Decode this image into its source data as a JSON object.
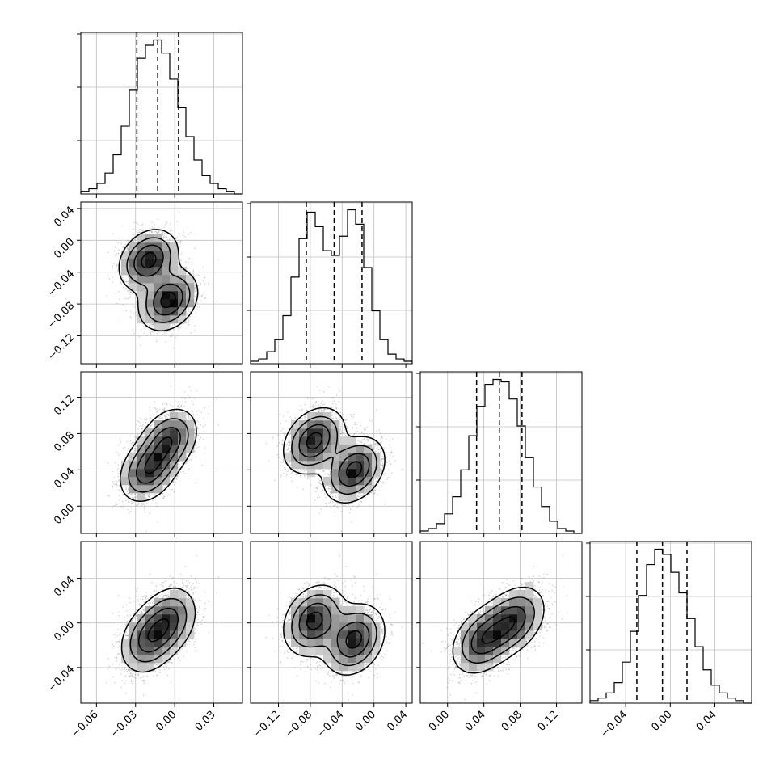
{
  "chart_data": {
    "type": "corner",
    "dimension": 4,
    "grid": true,
    "colors": {
      "axes": "#000000",
      "grid": "#bfbfbf",
      "hist": "#000000",
      "points": "#7f7f7f",
      "density_max": "#000000",
      "background": "#ffffff"
    },
    "params": [
      {
        "range": [
          -0.072,
          0.052
        ],
        "ticks": [
          -0.06,
          -0.03,
          0.0,
          0.03
        ],
        "tick_labels": [
          "−0.06",
          "−0.03",
          "0.00",
          "0.03"
        ],
        "mean": -0.013,
        "sd": 0.016,
        "quantiles": [
          -0.029,
          -0.013,
          0.003
        ]
      },
      {
        "range": [
          -0.155,
          0.048
        ],
        "ticks": [
          -0.12,
          -0.08,
          -0.04,
          0.0,
          0.04
        ],
        "tick_labels": [
          "−0.12",
          "−0.08",
          "−0.04",
          "0.00",
          "0.04"
        ],
        "mean": -0.05,
        "sd": 0.033,
        "quantiles": [
          -0.085,
          -0.05,
          -0.015
        ]
      },
      {
        "range": [
          -0.03,
          0.148
        ],
        "ticks": [
          0.0,
          0.04,
          0.08,
          0.12
        ],
        "tick_labels": [
          "0.00",
          "0.04",
          "0.08",
          "0.12"
        ],
        "mean": 0.057,
        "sd": 0.025,
        "quantiles": [
          0.032,
          0.057,
          0.082
        ]
      },
      {
        "range": [
          -0.072,
          0.073
        ],
        "ticks": [
          -0.04,
          0.0,
          0.04
        ],
        "tick_labels": [
          "−0.04",
          "0.00",
          "0.04"
        ],
        "mean": -0.007,
        "sd": 0.022,
        "quantiles": [
          -0.03,
          -0.007,
          0.015
        ]
      }
    ],
    "modes": [
      {
        "weight": 0.5,
        "mean": [
          -0.02,
          -0.025,
          0.04,
          -0.015
        ]
      },
      {
        "weight": 0.5,
        "mean": [
          -0.005,
          -0.075,
          0.072,
          0.002
        ]
      }
    ],
    "histograms": [
      {
        "param": 0,
        "bins": 20,
        "counts": [
          1,
          2,
          4,
          8,
          15,
          26,
          40,
          52,
          57,
          59,
          54,
          44,
          33,
          22,
          13,
          7,
          4,
          2,
          1,
          0
        ]
      },
      {
        "param": 1,
        "bins": 20,
        "counts": [
          1,
          2,
          5,
          10,
          20,
          36,
          52,
          63,
          57,
          47,
          45,
          53,
          64,
          58,
          40,
          22,
          10,
          4,
          2,
          1
        ]
      },
      {
        "param": 2,
        "bins": 20,
        "counts": [
          1,
          2,
          4,
          8,
          15,
          26,
          40,
          52,
          61,
          63,
          62,
          55,
          44,
          31,
          19,
          11,
          5,
          2,
          1,
          0
        ]
      },
      {
        "param": 3,
        "bins": 20,
        "counts": [
          1,
          2,
          4,
          8,
          16,
          28,
          42,
          54,
          60,
          58,
          51,
          43,
          33,
          22,
          13,
          7,
          4,
          2,
          1,
          0
        ]
      }
    ],
    "density_panels": [
      {
        "x_param": 0,
        "y_param": 1,
        "contour_levels": 4,
        "peaks": [
          [
            -0.02,
            -0.025
          ],
          [
            -0.005,
            -0.075
          ]
        ]
      },
      {
        "x_param": 0,
        "y_param": 2,
        "contour_levels": 4,
        "peaks": [
          [
            -0.02,
            0.04
          ],
          [
            -0.005,
            0.072
          ]
        ]
      },
      {
        "x_param": 1,
        "y_param": 2,
        "contour_levels": 4,
        "peaks": [
          [
            -0.075,
            0.072
          ],
          [
            -0.025,
            0.04
          ]
        ]
      },
      {
        "x_param": 0,
        "y_param": 3,
        "contour_levels": 4,
        "peaks": [
          [
            -0.02,
            -0.015
          ],
          [
            -0.005,
            0.002
          ]
        ]
      },
      {
        "x_param": 1,
        "y_param": 3,
        "contour_levels": 4,
        "peaks": [
          [
            -0.075,
            0.002
          ],
          [
            -0.025,
            -0.015
          ]
        ]
      },
      {
        "x_param": 2,
        "y_param": 3,
        "contour_levels": 4,
        "peaks": [
          [
            0.04,
            -0.015
          ],
          [
            0.072,
            0.002
          ]
        ]
      }
    ]
  }
}
